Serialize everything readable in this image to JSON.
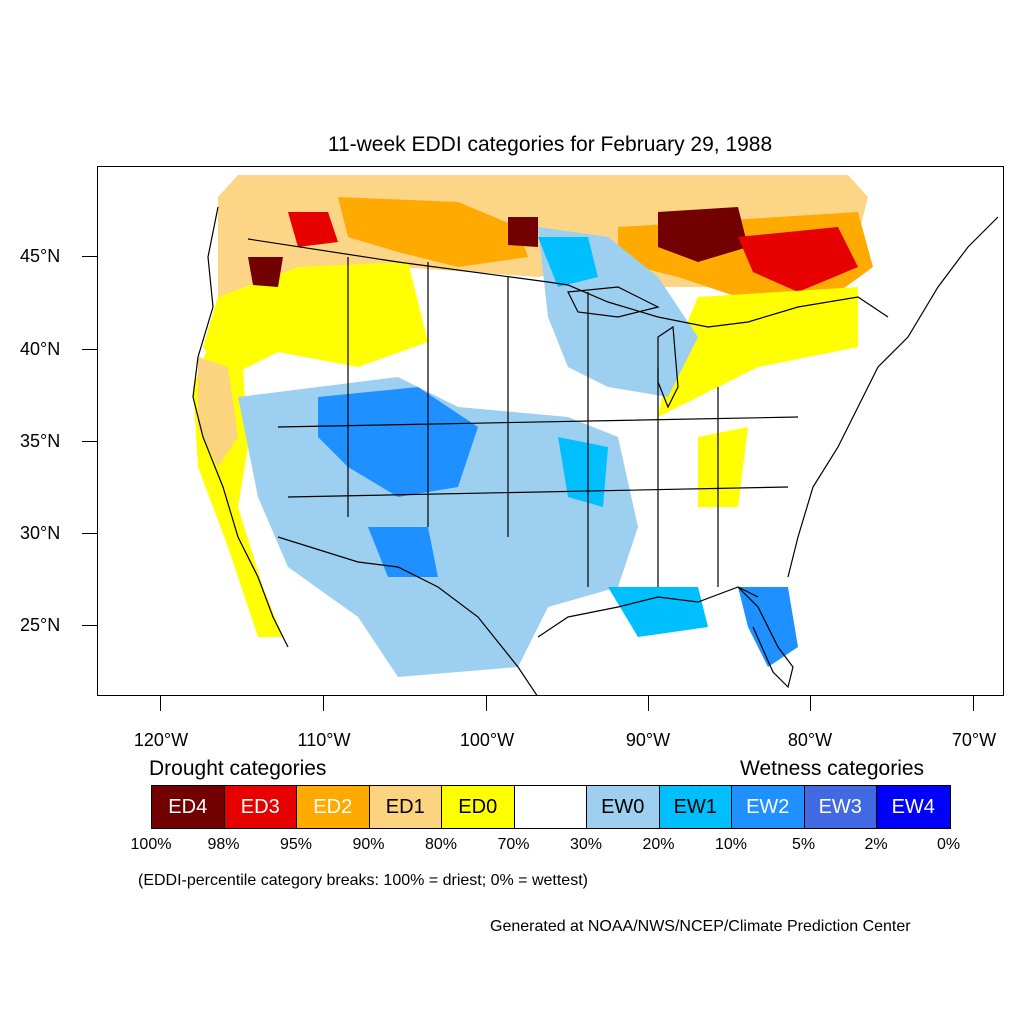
{
  "title": "11-week EDDI categories for February 29, 1988",
  "lat_labels": [
    "45°N",
    "40°N",
    "35°N",
    "30°N",
    "25°N"
  ],
  "lon_labels": [
    "120°W",
    "110°W",
    "100°W",
    "90°W",
    "80°W",
    "70°W"
  ],
  "legend": {
    "drought_heading": "Drought categories",
    "wetness_heading": "Wetness categories",
    "categories": [
      {
        "label": "ED4",
        "color": "#730000",
        "text_color": "#ffffff"
      },
      {
        "label": "ED3",
        "color": "#e60000",
        "text_color": "#ffffff"
      },
      {
        "label": "ED2",
        "color": "#ffaa00",
        "text_color": "#ffffff"
      },
      {
        "label": "ED1",
        "color": "#fcd37f",
        "text_color": "#000000"
      },
      {
        "label": "ED0",
        "color": "#ffff00",
        "text_color": "#000000"
      },
      {
        "label": "",
        "color": "#ffffff",
        "text_color": "#000000"
      },
      {
        "label": "EW0",
        "color": "#9dcff0",
        "text_color": "#000000"
      },
      {
        "label": "EW1",
        "color": "#00bfff",
        "text_color": "#000000"
      },
      {
        "label": "EW2",
        "color": "#1e90ff",
        "text_color": "#ffffff"
      },
      {
        "label": "EW3",
        "color": "#4169e1",
        "text_color": "#ffffff"
      },
      {
        "label": "EW4",
        "color": "#0000ff",
        "text_color": "#ffffff"
      }
    ],
    "breaks": [
      "100%",
      "98%",
      "95%",
      "90%",
      "80%",
      "70%",
      "30%",
      "20%",
      "10%",
      "5%",
      "2%",
      "0%"
    ]
  },
  "note": "(EDDI-percentile category breaks: 100% = driest; 0% = wettest)",
  "credit": "Generated at NOAA/NWS/NCEP/Climate Prediction Center"
}
